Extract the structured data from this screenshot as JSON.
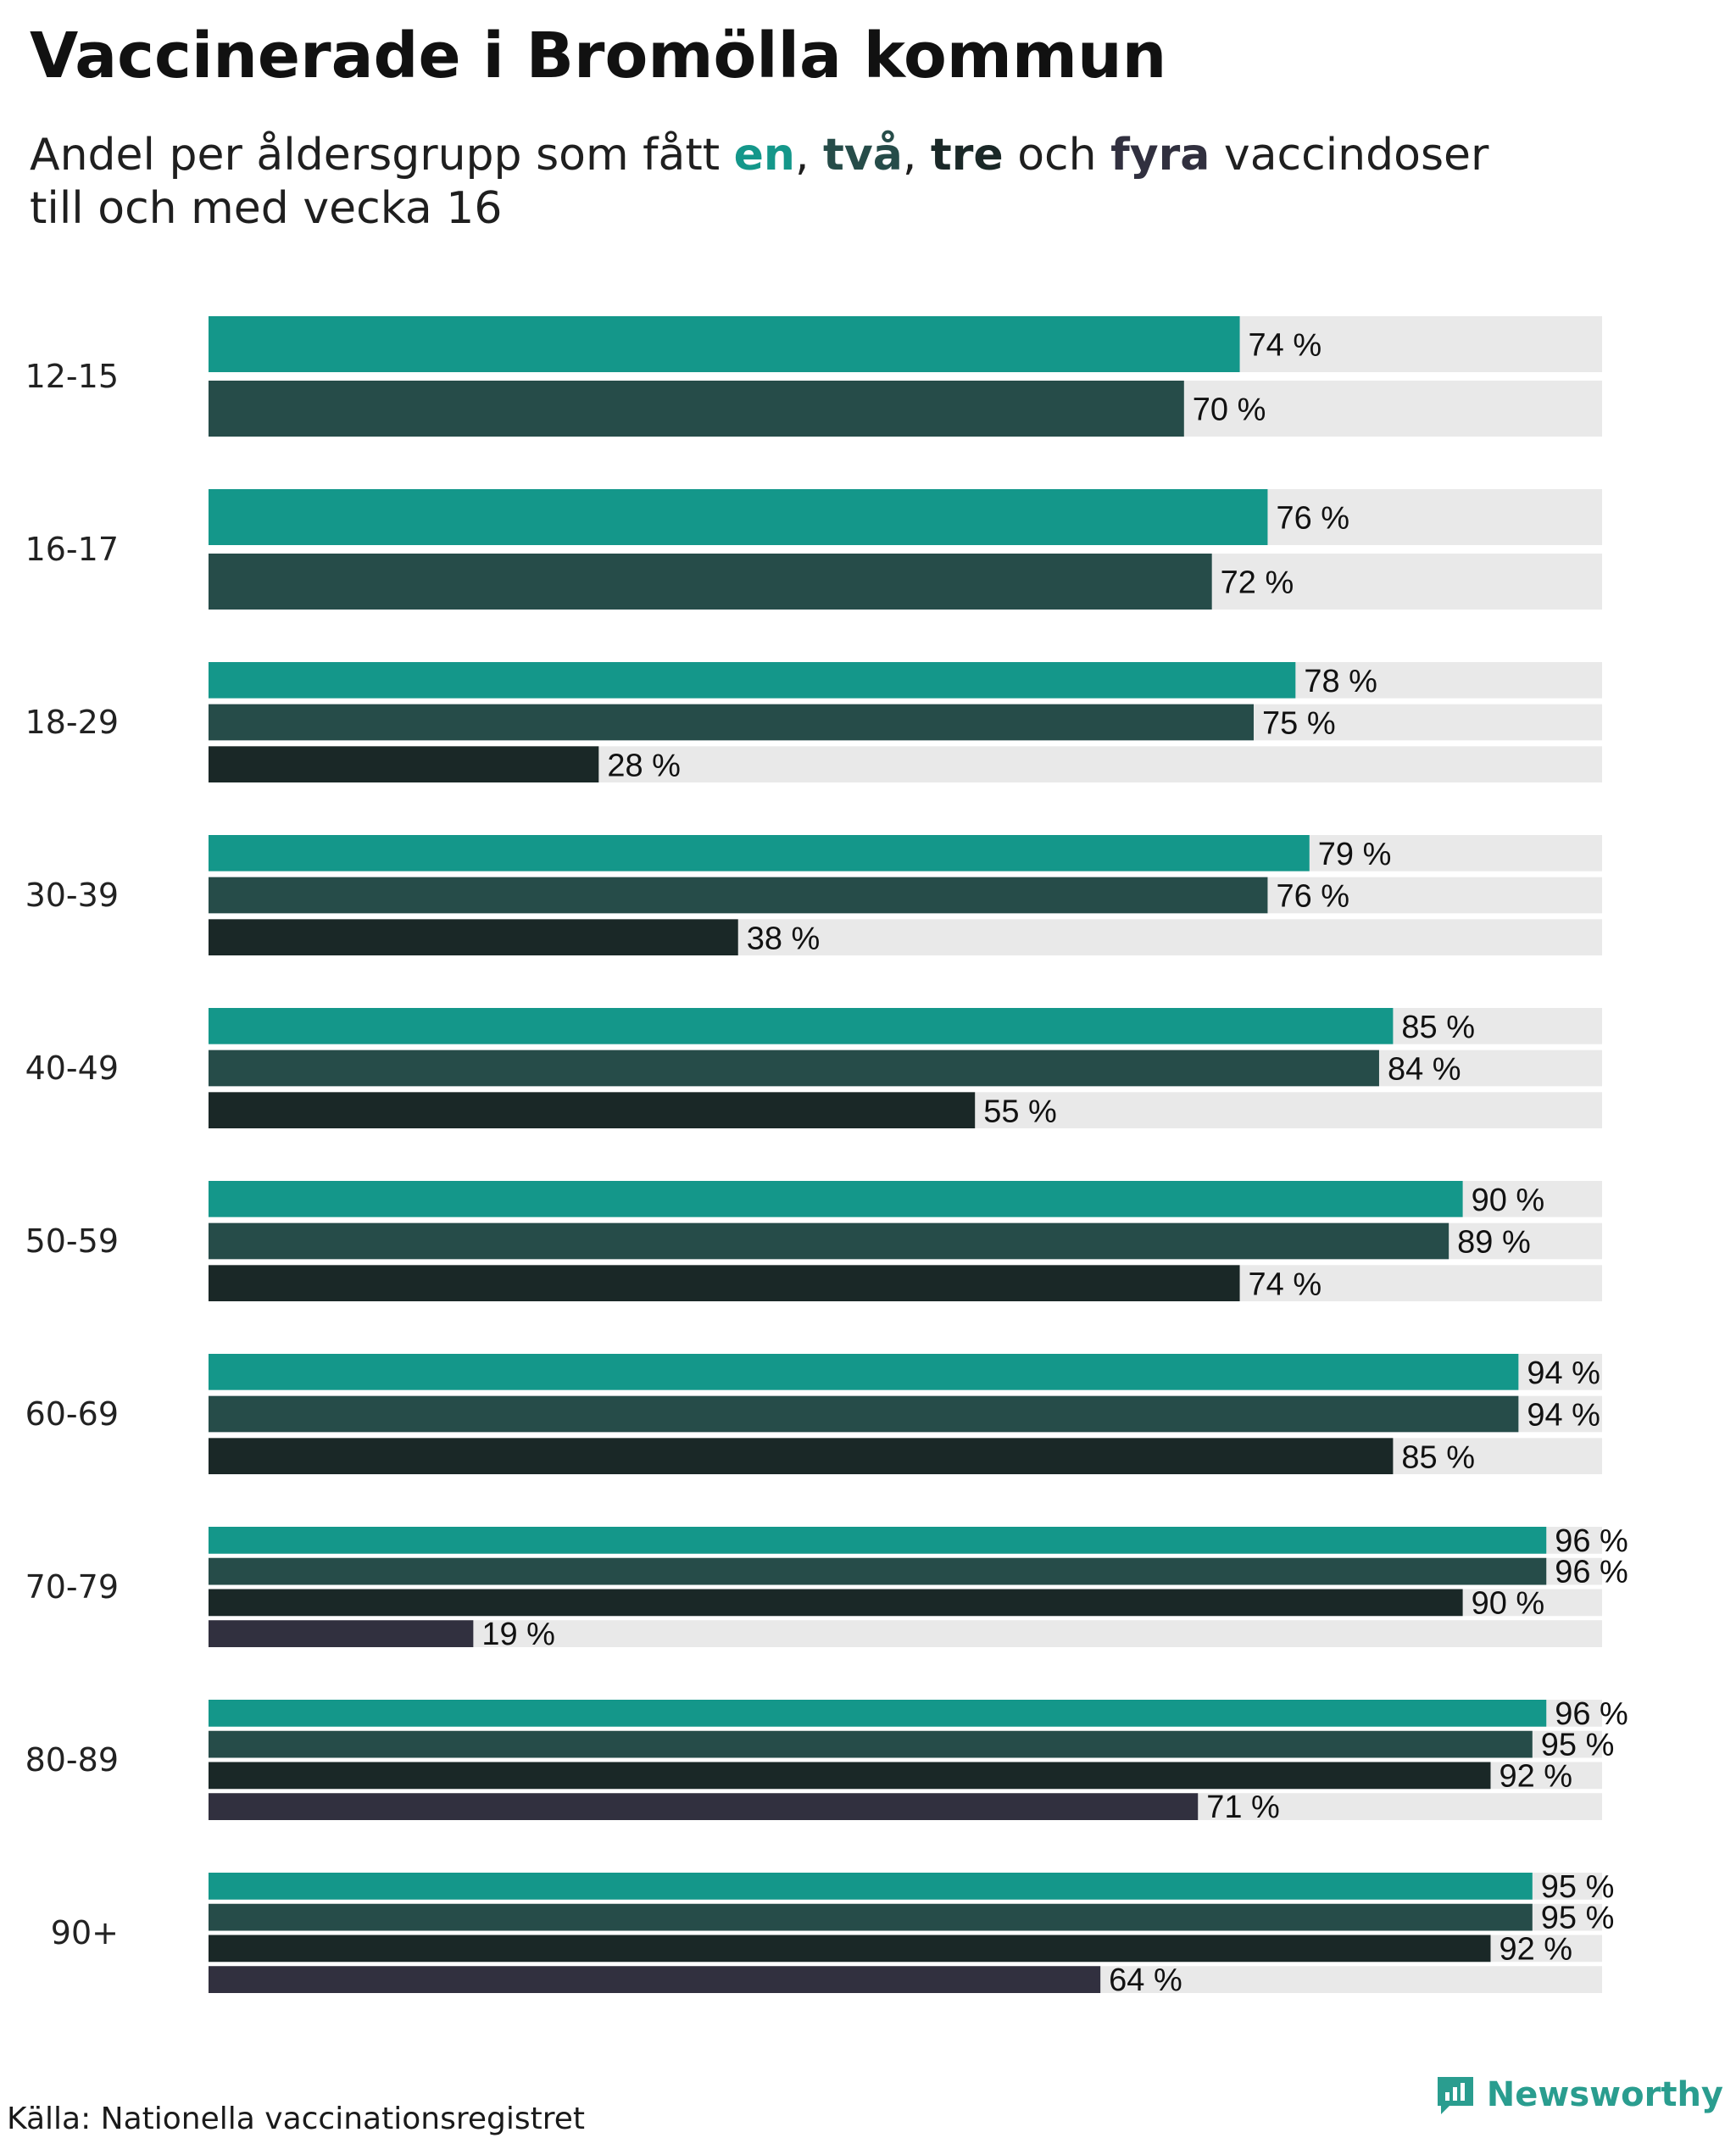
{
  "title": "Vaccinerade i Bromölla kommun",
  "subtitle": {
    "prefix": "Andel per åldersgrupp som fått ",
    "dose1": "en",
    "sep1": ", ",
    "dose2": "två",
    "sep2": ", ",
    "dose3": "tre",
    "and": " och ",
    "dose4": "fyra",
    "suffix": " vaccindoser",
    "line2": "till och med vecka 16"
  },
  "source": "Källa: Nationella vaccinationsregistret",
  "brand": "Newsworthy",
  "colors": {
    "dose1": "#14978a",
    "dose2": "#264c49",
    "dose3": "#1a2827",
    "dose4": "#31303f",
    "track": "#e9e9e9",
    "brand": "#2a9d8f"
  },
  "chart_data": {
    "type": "bar",
    "orientation": "horizontal",
    "xlim": [
      0,
      100
    ],
    "unit": "%",
    "categories": [
      "12-15",
      "16-17",
      "18-29",
      "30-39",
      "40-49",
      "50-59",
      "60-69",
      "70-79",
      "80-89",
      "90+"
    ],
    "series": [
      {
        "name": "en",
        "values": [
          74,
          76,
          78,
          79,
          85,
          90,
          94,
          96,
          96,
          95
        ]
      },
      {
        "name": "två",
        "values": [
          70,
          72,
          75,
          76,
          84,
          89,
          94,
          96,
          95,
          95
        ]
      },
      {
        "name": "tre",
        "values": [
          null,
          null,
          28,
          38,
          55,
          74,
          85,
          90,
          92,
          92
        ]
      },
      {
        "name": "fyra",
        "values": [
          null,
          null,
          null,
          null,
          null,
          null,
          null,
          19,
          71,
          64
        ]
      }
    ]
  }
}
